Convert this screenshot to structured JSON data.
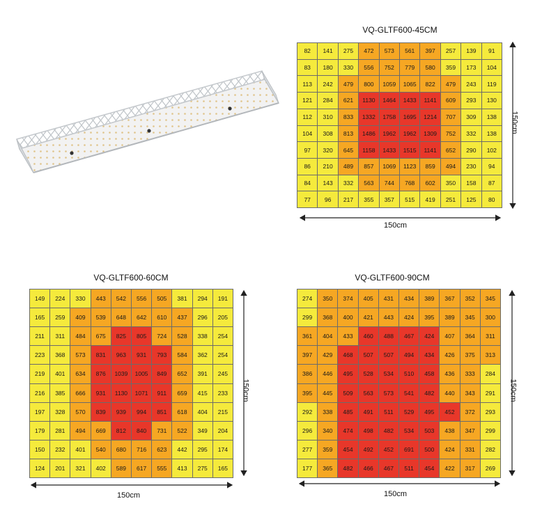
{
  "colors": {
    "yellow": "#f5ea3c",
    "orange": "#f6a723",
    "red": "#e8372a",
    "grid_line": "#6b6b6b",
    "arrow": "#222222"
  },
  "product_image": {
    "icon": "led-grow-light-fixture-icon"
  },
  "chart_data": [
    {
      "type": "heatmap",
      "title": "VQ-GLTF600-45CM",
      "xlabel": "150cm",
      "ylabel": "150cm",
      "values": [
        [
          82,
          141,
          275,
          472,
          573,
          561,
          397,
          257,
          139,
          91
        ],
        [
          83,
          180,
          330,
          556,
          752,
          779,
          580,
          359,
          173,
          104
        ],
        [
          113,
          242,
          479,
          800,
          1059,
          1065,
          822,
          479,
          243,
          119
        ],
        [
          121,
          284,
          621,
          1130,
          1464,
          1433,
          1141,
          609,
          293,
          130
        ],
        [
          112,
          310,
          833,
          1332,
          1758,
          1695,
          1214,
          707,
          309,
          138
        ],
        [
          104,
          308,
          813,
          1486,
          1962,
          1962,
          1309,
          752,
          332,
          138
        ],
        [
          97,
          320,
          645,
          1158,
          1433,
          1515,
          1141,
          652,
          290,
          102
        ],
        [
          86,
          210,
          489,
          857,
          1069,
          1123,
          859,
          494,
          230,
          94
        ],
        [
          84,
          143,
          332,
          563,
          744,
          768,
          602,
          350,
          158,
          87
        ],
        [
          77,
          96,
          217,
          355,
          357,
          515,
          419,
          251,
          125,
          80
        ]
      ],
      "levels": [
        [
          0,
          0,
          0,
          1,
          1,
          1,
          1,
          0,
          0,
          0
        ],
        [
          0,
          0,
          0,
          1,
          1,
          1,
          1,
          0,
          0,
          0
        ],
        [
          0,
          0,
          1,
          1,
          1,
          1,
          1,
          1,
          0,
          0
        ],
        [
          0,
          0,
          1,
          2,
          2,
          2,
          2,
          1,
          0,
          0
        ],
        [
          0,
          0,
          1,
          2,
          2,
          2,
          2,
          1,
          0,
          0
        ],
        [
          0,
          0,
          1,
          2,
          2,
          2,
          2,
          1,
          0,
          0
        ],
        [
          0,
          0,
          1,
          2,
          2,
          2,
          2,
          1,
          0,
          0
        ],
        [
          0,
          0,
          1,
          1,
          1,
          1,
          1,
          1,
          0,
          0
        ],
        [
          0,
          0,
          0,
          1,
          1,
          1,
          1,
          0,
          0,
          0
        ],
        [
          0,
          0,
          0,
          0,
          0,
          0,
          0,
          0,
          0,
          0
        ]
      ]
    },
    {
      "type": "heatmap",
      "title": "VQ-GLTF600-60CM",
      "xlabel": "150cm",
      "ylabel": "150cm",
      "values": [
        [
          149,
          224,
          330,
          443,
          542,
          556,
          505,
          381,
          294,
          191
        ],
        [
          165,
          259,
          409,
          539,
          648,
          642,
          610,
          437,
          296,
          205
        ],
        [
          211,
          311,
          484,
          675,
          825,
          805,
          724,
          528,
          338,
          254
        ],
        [
          223,
          368,
          573,
          831,
          963,
          931,
          793,
          584,
          362,
          254
        ],
        [
          219,
          401,
          634,
          876,
          1039,
          1005,
          849,
          652,
          391,
          245
        ],
        [
          216,
          385,
          666,
          931,
          1130,
          1071,
          911,
          659,
          415,
          233
        ],
        [
          197,
          328,
          570,
          839,
          939,
          994,
          851,
          618,
          404,
          215
        ],
        [
          179,
          281,
          494,
          669,
          812,
          840,
          731,
          522,
          349,
          204
        ],
        [
          150,
          232,
          401,
          540,
          680,
          716,
          623,
          442,
          295,
          174
        ],
        [
          124,
          201,
          321,
          402,
          589,
          617,
          555,
          413,
          275,
          165
        ]
      ],
      "levels": [
        [
          0,
          0,
          0,
          1,
          1,
          1,
          1,
          0,
          0,
          0
        ],
        [
          0,
          0,
          1,
          1,
          1,
          1,
          1,
          1,
          0,
          0
        ],
        [
          0,
          0,
          1,
          1,
          2,
          2,
          1,
          1,
          0,
          0
        ],
        [
          0,
          0,
          1,
          2,
          2,
          2,
          2,
          1,
          0,
          0
        ],
        [
          0,
          0,
          1,
          2,
          2,
          2,
          2,
          1,
          0,
          0
        ],
        [
          0,
          0,
          1,
          2,
          2,
          2,
          2,
          1,
          0,
          0
        ],
        [
          0,
          0,
          1,
          2,
          2,
          2,
          2,
          1,
          0,
          0
        ],
        [
          0,
          0,
          1,
          1,
          2,
          2,
          1,
          1,
          0,
          0
        ],
        [
          0,
          0,
          0,
          1,
          1,
          1,
          1,
          0,
          0,
          0
        ],
        [
          0,
          0,
          0,
          0,
          1,
          1,
          1,
          0,
          0,
          0
        ]
      ]
    },
    {
      "type": "heatmap",
      "title": "VQ-GLTF600-90CM",
      "xlabel": "150cm",
      "ylabel": "150cm",
      "values": [
        [
          274,
          350,
          374,
          405,
          431,
          434,
          389,
          367,
          352,
          345
        ],
        [
          299,
          368,
          400,
          421,
          443,
          424,
          395,
          389,
          345,
          300
        ],
        [
          361,
          404,
          433,
          460,
          488,
          467,
          424,
          407,
          364,
          311
        ],
        [
          397,
          429,
          468,
          507,
          507,
          494,
          434,
          426,
          375,
          313
        ],
        [
          386,
          446,
          495,
          528,
          534,
          510,
          458,
          436,
          333,
          284
        ],
        [
          395,
          445,
          509,
          563,
          573,
          541,
          482,
          440,
          343,
          291
        ],
        [
          292,
          338,
          485,
          491,
          511,
          529,
          495,
          452,
          372,
          293
        ],
        [
          296,
          340,
          474,
          498,
          482,
          534,
          503,
          438,
          347,
          299
        ],
        [
          277,
          359,
          454,
          492,
          452,
          691,
          500,
          424,
          331,
          282
        ],
        [
          177,
          365,
          482,
          466,
          467,
          511,
          454,
          422,
          317,
          269
        ]
      ],
      "levels": [
        [
          0,
          1,
          1,
          1,
          1,
          1,
          1,
          1,
          1,
          1
        ],
        [
          0,
          1,
          1,
          1,
          1,
          1,
          1,
          1,
          1,
          1
        ],
        [
          1,
          1,
          1,
          2,
          2,
          2,
          2,
          1,
          1,
          1
        ],
        [
          1,
          1,
          2,
          2,
          2,
          2,
          2,
          1,
          1,
          1
        ],
        [
          1,
          1,
          2,
          2,
          2,
          2,
          2,
          1,
          1,
          0
        ],
        [
          1,
          1,
          2,
          2,
          2,
          2,
          2,
          1,
          1,
          0
        ],
        [
          0,
          1,
          2,
          2,
          2,
          2,
          2,
          2,
          1,
          0
        ],
        [
          0,
          1,
          2,
          2,
          2,
          2,
          2,
          1,
          1,
          0
        ],
        [
          0,
          1,
          2,
          2,
          2,
          2,
          2,
          1,
          1,
          0
        ],
        [
          0,
          1,
          2,
          2,
          2,
          2,
          2,
          1,
          1,
          0
        ]
      ]
    }
  ]
}
